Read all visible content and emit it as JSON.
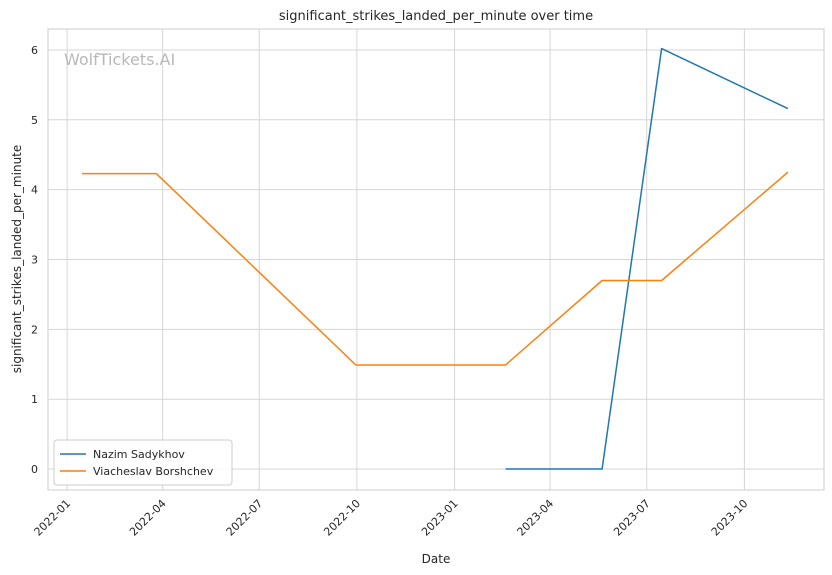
{
  "chart_data": {
    "type": "line",
    "title": "significant_strikes_landed_per_minute over time",
    "xlabel": "Date",
    "ylabel": "significant_strikes_landed_per_minute",
    "watermark": "WolfTickets.AI",
    "grid": true,
    "legend_position": "lower-left",
    "xlim": [
      "2021-12-14",
      "2023-12-15"
    ],
    "ylim": [
      -0.3,
      6.3
    ],
    "x_ticks": [
      "2022-01-01",
      "2022-04-01",
      "2022-07-01",
      "2022-10-01",
      "2023-01-01",
      "2023-04-01",
      "2023-07-01",
      "2023-10-01"
    ],
    "x_tick_labels": [
      "2022-01",
      "2022-04",
      "2022-07",
      "2022-10",
      "2023-01",
      "2023-04",
      "2023-07",
      "2023-10"
    ],
    "y_ticks": [
      0,
      1,
      2,
      3,
      4,
      5,
      6
    ],
    "y_tick_labels": [
      "0",
      "1",
      "2",
      "3",
      "4",
      "5",
      "6"
    ],
    "series": [
      {
        "name": "Nazim Sadykhov",
        "color": "#1f77b4",
        "x": [
          "2023-02-18",
          "2023-05-20",
          "2023-07-15",
          "2023-11-11"
        ],
        "y": [
          0.0,
          0.0,
          6.02,
          5.16
        ]
      },
      {
        "name": "Viacheslav Borshchev",
        "color": "#ff7f0e",
        "x": [
          "2022-01-15",
          "2022-03-26",
          "2022-09-30",
          "2023-02-18",
          "2023-05-20",
          "2023-07-15",
          "2023-11-11"
        ],
        "y": [
          4.23,
          4.23,
          1.49,
          1.49,
          2.7,
          2.7,
          4.25
        ]
      }
    ]
  }
}
